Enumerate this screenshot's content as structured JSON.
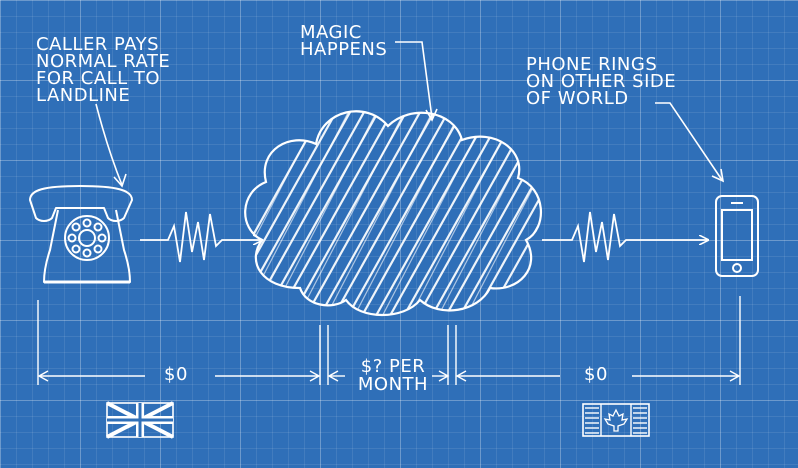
{
  "annotations": {
    "caller": [
      "CALLER PAYS",
      "NORMAL RATE",
      "FOR CALL TO",
      "LANDLINE"
    ],
    "magic": [
      "MAGIC",
      "HAPPENS"
    ],
    "phone": [
      "PHONE RINGS",
      "ON OTHER SIDE",
      "OF WORLD"
    ]
  },
  "costs": {
    "left": "$0",
    "middle": [
      "$? PER",
      "MONTH"
    ],
    "right": "$0"
  },
  "icons": [
    "rotary-telephone-icon",
    "cloud-icon",
    "smartphone-icon",
    "uk-flag-icon",
    "canada-flag-icon"
  ],
  "colors": {
    "background": "#2f6fb8",
    "line": "#ffffff"
  }
}
